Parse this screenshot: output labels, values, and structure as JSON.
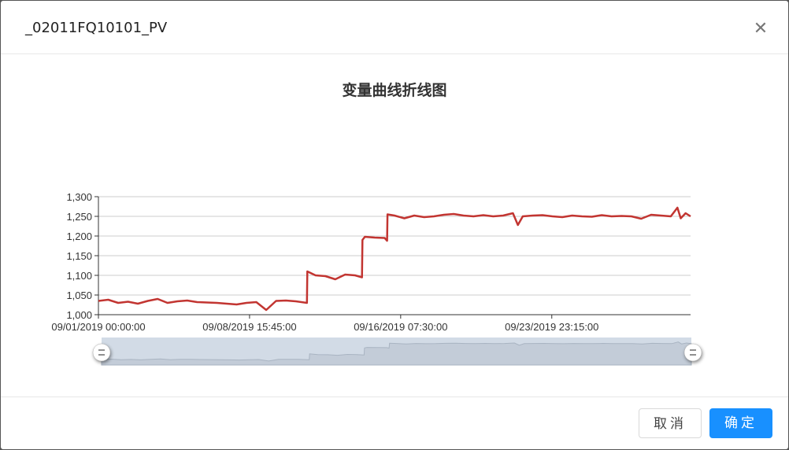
{
  "dialog": {
    "title": "_02011FQ10101_PV",
    "close_icon": "close-icon",
    "cancel_label": "取消",
    "ok_label": "确定",
    "accent": "#1890ff"
  },
  "chart_data": {
    "type": "line",
    "title": "变量曲线折线图",
    "xlabel": "",
    "ylabel": "",
    "ylim": [
      1000,
      1300
    ],
    "y_interval": 50,
    "xlim": [
      "2019-09-01 00:00",
      "2019-10-01 00:00"
    ],
    "x_ticks": [
      {
        "t": "2019-09-01 00:00",
        "label": "09/01/2019 00:00:00"
      },
      {
        "t": "2019-09-08 15:45",
        "label": "09/08/2019 15:45:00"
      },
      {
        "t": "2019-09-16 07:30",
        "label": "09/16/2019 07:30:00"
      },
      {
        "t": "2019-09-23 23:15",
        "label": "09/23/2019 23:15:00"
      }
    ],
    "grid": true,
    "line_color": "#c23531",
    "datazoom": {
      "start_percent": 0,
      "end_percent": 100,
      "fill": "#d2dbe6"
    },
    "points": [
      [
        "2019-09-01 00:00",
        1035
      ],
      [
        "2019-09-01 12:00",
        1038
      ],
      [
        "2019-09-02 00:00",
        1030
      ],
      [
        "2019-09-02 12:00",
        1033
      ],
      [
        "2019-09-03 00:00",
        1028
      ],
      [
        "2019-09-03 12:00",
        1035
      ],
      [
        "2019-09-04 00:00",
        1040
      ],
      [
        "2019-09-04 12:00",
        1030
      ],
      [
        "2019-09-05 00:00",
        1034
      ],
      [
        "2019-09-05 12:00",
        1036
      ],
      [
        "2019-09-06 00:00",
        1032
      ],
      [
        "2019-09-06 12:00",
        1031
      ],
      [
        "2019-09-07 00:00",
        1030
      ],
      [
        "2019-09-07 12:00",
        1028
      ],
      [
        "2019-09-08 00:00",
        1026
      ],
      [
        "2019-09-08 12:00",
        1030
      ],
      [
        "2019-09-09 00:00",
        1032
      ],
      [
        "2019-09-09 12:00",
        1012
      ],
      [
        "2019-09-10 00:00",
        1035
      ],
      [
        "2019-09-10 12:00",
        1036
      ],
      [
        "2019-09-11 00:00",
        1034
      ],
      [
        "2019-09-11 13:30",
        1030
      ],
      [
        "2019-09-11 14:00",
        1110
      ],
      [
        "2019-09-12 00:00",
        1100
      ],
      [
        "2019-09-12 12:00",
        1098
      ],
      [
        "2019-09-13 00:00",
        1090
      ],
      [
        "2019-09-13 12:00",
        1102
      ],
      [
        "2019-09-14 00:00",
        1100
      ],
      [
        "2019-09-14 08:30",
        1095
      ],
      [
        "2019-09-14 09:00",
        1190
      ],
      [
        "2019-09-14 12:00",
        1198
      ],
      [
        "2019-09-15 00:00",
        1196
      ],
      [
        "2019-09-15 12:00",
        1195
      ],
      [
        "2019-09-15 15:00",
        1188
      ],
      [
        "2019-09-15 15:30",
        1255
      ],
      [
        "2019-09-16 00:00",
        1252
      ],
      [
        "2019-09-16 12:00",
        1245
      ],
      [
        "2019-09-17 00:00",
        1252
      ],
      [
        "2019-09-17 12:00",
        1248
      ],
      [
        "2019-09-18 00:00",
        1250
      ],
      [
        "2019-09-18 12:00",
        1254
      ],
      [
        "2019-09-19 00:00",
        1256
      ],
      [
        "2019-09-19 12:00",
        1252
      ],
      [
        "2019-09-20 00:00",
        1250
      ],
      [
        "2019-09-20 12:00",
        1253
      ],
      [
        "2019-09-21 00:00",
        1250
      ],
      [
        "2019-09-21 12:00",
        1252
      ],
      [
        "2019-09-22 00:00",
        1258
      ],
      [
        "2019-09-22 06:00",
        1228
      ],
      [
        "2019-09-22 12:00",
        1250
      ],
      [
        "2019-09-23 00:00",
        1252
      ],
      [
        "2019-09-23 12:00",
        1253
      ],
      [
        "2019-09-24 00:00",
        1250
      ],
      [
        "2019-09-24 12:00",
        1248
      ],
      [
        "2019-09-25 00:00",
        1252
      ],
      [
        "2019-09-25 12:00",
        1250
      ],
      [
        "2019-09-26 00:00",
        1249
      ],
      [
        "2019-09-26 12:00",
        1253
      ],
      [
        "2019-09-27 00:00",
        1250
      ],
      [
        "2019-09-27 12:00",
        1251
      ],
      [
        "2019-09-28 00:00",
        1250
      ],
      [
        "2019-09-28 12:00",
        1244
      ],
      [
        "2019-09-29 00:00",
        1254
      ],
      [
        "2019-09-29 12:00",
        1252
      ],
      [
        "2019-09-30 00:00",
        1250
      ],
      [
        "2019-09-30 08:00",
        1272
      ],
      [
        "2019-09-30 12:00",
        1245
      ],
      [
        "2019-09-30 18:00",
        1258
      ],
      [
        "2019-10-01 00:00",
        1250
      ]
    ]
  }
}
